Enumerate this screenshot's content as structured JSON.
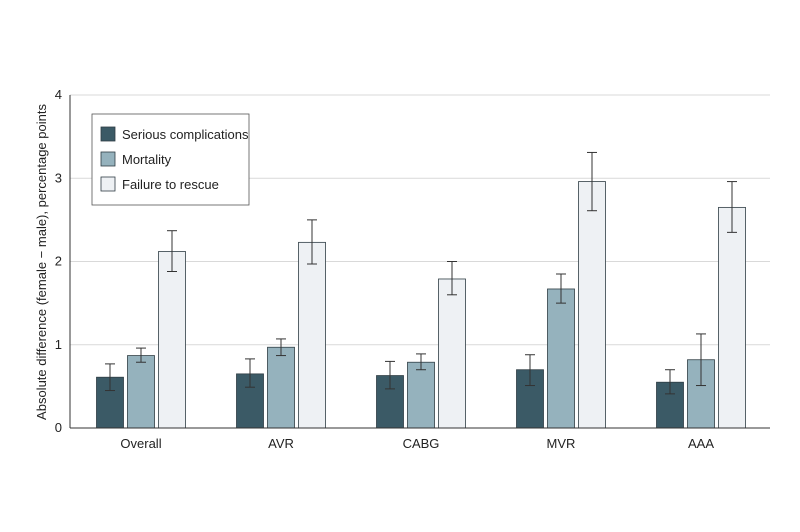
{
  "chart_data": {
    "type": "bar",
    "title": "",
    "xlabel": "",
    "ylabel": "Absolute difference (female − male), percentage points",
    "ylim": [
      0,
      4
    ],
    "yticks": [
      0,
      1,
      2,
      3,
      4
    ],
    "grid": true,
    "legend_position": "top-left",
    "categories": [
      "Overall",
      "AVR",
      "CABG",
      "MVR",
      "AAA"
    ],
    "series": [
      {
        "name": "Serious complications",
        "color": "#3b5a66",
        "values": [
          0.61,
          0.65,
          0.63,
          0.7,
          0.55
        ],
        "ci_low": [
          0.45,
          0.49,
          0.47,
          0.51,
          0.41
        ],
        "ci_high": [
          0.77,
          0.83,
          0.8,
          0.88,
          0.7
        ]
      },
      {
        "name": "Mortality",
        "color": "#95b2bd",
        "values": [
          0.87,
          0.97,
          0.79,
          1.67,
          0.82
        ],
        "ci_low": [
          0.79,
          0.87,
          0.7,
          1.5,
          0.51
        ],
        "ci_high": [
          0.96,
          1.07,
          0.89,
          1.85,
          1.13
        ]
      },
      {
        "name": "Failure to rescue",
        "color": "#eef1f4",
        "values": [
          2.12,
          2.23,
          1.79,
          2.96,
          2.65
        ],
        "ci_low": [
          1.88,
          1.97,
          1.6,
          2.61,
          2.35
        ],
        "ci_high": [
          2.37,
          2.5,
          2.0,
          3.31,
          2.96
        ]
      }
    ]
  }
}
